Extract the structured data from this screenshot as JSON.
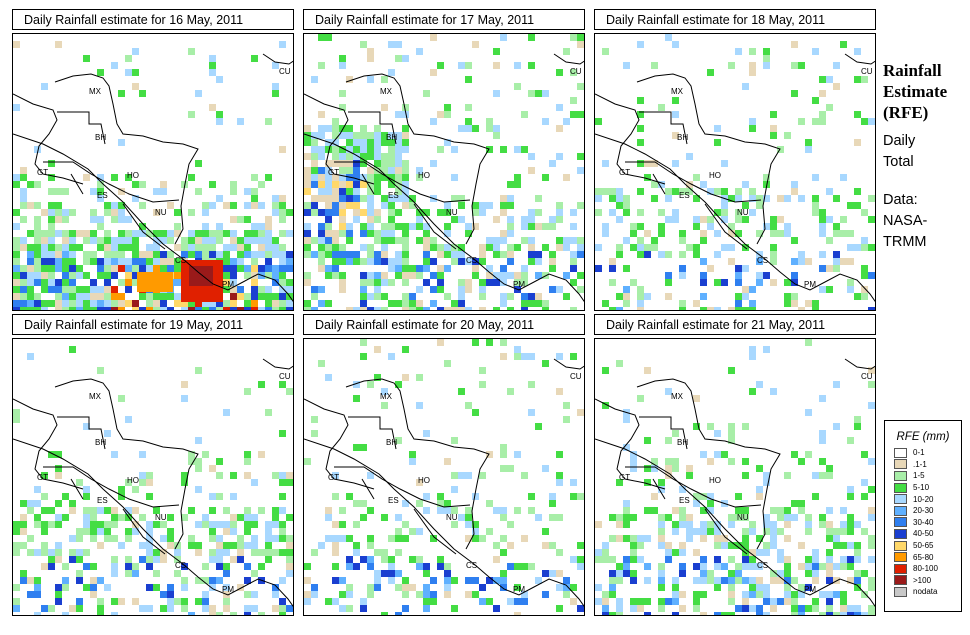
{
  "panels": [
    {
      "title": "Daily Rainfall estimate for  16 May, 2011",
      "intensity": "heavy"
    },
    {
      "title": "Daily Rainfall estimate for  17 May, 2011",
      "intensity": "west"
    },
    {
      "title": "Daily Rainfall estimate for  18 May, 2011",
      "intensity": "light"
    },
    {
      "title": "Daily Rainfall estimate for  19 May, 2011",
      "intensity": "moderate"
    },
    {
      "title": "Daily Rainfall estimate for  20 May, 2011",
      "intensity": "light"
    },
    {
      "title": "Daily Rainfall estimate for  21 May, 2011",
      "intensity": "moderate"
    }
  ],
  "map_labels": [
    "MX",
    "CU",
    "BH",
    "GT",
    "HO",
    "ES",
    "NU",
    "CS",
    "PM"
  ],
  "side": {
    "title_line1": "Rainfall",
    "title_line2": "Estimate",
    "title_line3": "(RFE)",
    "subtitle_line1": "Daily",
    "subtitle_line2": "Total",
    "data_line1": "Data:",
    "data_line2": "NASA-",
    "data_line3": "TRMM"
  },
  "legend": {
    "title": "RFE (mm)",
    "items": [
      {
        "label": "0-1",
        "color": "#ffffff"
      },
      {
        "label": ".1-1",
        "color": "#e8d8b8"
      },
      {
        "label": "1-5",
        "color": "#a8eea8"
      },
      {
        "label": "5-10",
        "color": "#44dd44"
      },
      {
        "label": "10-20",
        "color": "#a8d8ff"
      },
      {
        "label": "20-30",
        "color": "#5fb0ff"
      },
      {
        "label": "30-40",
        "color": "#2f7ff0"
      },
      {
        "label": "40-50",
        "color": "#1a3fd0"
      },
      {
        "label": "50-65",
        "color": "#ffd86a"
      },
      {
        "label": "65-80",
        "color": "#ff9a00"
      },
      {
        "label": "80-100",
        "color": "#e02000"
      },
      {
        "label": ">100",
        "color": "#9a1a1a"
      },
      {
        "label": "nodata",
        "color": "#c8c8c8"
      }
    ]
  }
}
